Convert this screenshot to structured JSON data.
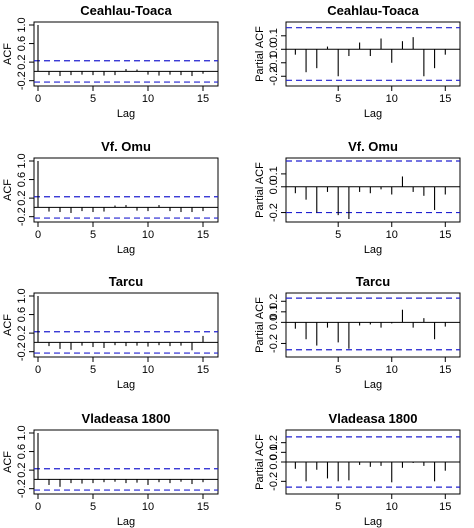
{
  "chart_data": [
    {
      "type": "acf",
      "title": "Ceahlau-Toaca",
      "xlabel": "Lag",
      "ylabel": "ACF",
      "xlim": [
        0,
        16
      ],
      "ylim": [
        -0.25,
        1.0
      ],
      "xticks": [
        "0",
        "5",
        "10",
        "15"
      ],
      "yticks": [
        "-0.2",
        "0.2",
        "0.6",
        "1.0"
      ],
      "ci": [
        -0.23,
        0.23
      ],
      "lags": [
        0,
        1,
        2,
        3,
        4,
        5,
        6,
        7,
        8,
        9,
        10,
        11,
        12,
        13,
        14,
        15
      ],
      "values": [
        1.0,
        -0.08,
        -0.1,
        -0.08,
        -0.07,
        -0.08,
        -0.09,
        -0.08,
        0.05,
        0.04,
        -0.07,
        -0.09,
        -0.07,
        -0.08,
        -0.1,
        -0.05
      ]
    },
    {
      "type": "pacf",
      "title": "Ceahlau-Toaca",
      "xlabel": "Lag",
      "ylabel": "Partial ACF",
      "xlim": [
        0.5,
        16
      ],
      "ylim": [
        -0.25,
        0.18
      ],
      "xticks": [
        "5",
        "10",
        "15"
      ],
      "yticks": [
        "-0.2",
        "-0.1",
        "0.0",
        "0.1"
      ],
      "ci": [
        -0.23,
        0.16
      ],
      "lags": [
        1,
        2,
        3,
        4,
        5,
        6,
        7,
        8,
        9,
        10,
        11,
        12,
        13,
        14,
        15
      ],
      "values": [
        -0.04,
        -0.17,
        -0.14,
        0.02,
        -0.2,
        -0.05,
        0.05,
        -0.05,
        0.08,
        -0.1,
        0.06,
        0.09,
        -0.2,
        -0.14,
        -0.04
      ]
    },
    {
      "type": "acf",
      "title": "Vf. Omu",
      "xlabel": "Lag",
      "ylabel": "ACF",
      "xlim": [
        0,
        16
      ],
      "ylim": [
        -0.25,
        1.0
      ],
      "xticks": [
        "0",
        "5",
        "10",
        "15"
      ],
      "yticks": [
        "-0.2",
        "0.2",
        "0.6",
        "1.0"
      ],
      "ci": [
        -0.23,
        0.23
      ],
      "lags": [
        0,
        1,
        2,
        3,
        4,
        5,
        6,
        7,
        8,
        9,
        10,
        11,
        12,
        13,
        14,
        15
      ],
      "values": [
        1.0,
        -0.09,
        -0.1,
        -0.12,
        -0.08,
        -0.1,
        -0.09,
        0.04,
        0.05,
        -0.07,
        -0.08,
        0.05,
        -0.08,
        -0.1,
        -0.1,
        -0.08
      ]
    },
    {
      "type": "pacf",
      "title": "Vf. Omu",
      "xlabel": "Lag",
      "ylabel": "Partial ACF",
      "xlim": [
        0.5,
        16
      ],
      "ylim": [
        -0.25,
        0.2
      ],
      "xticks": [
        "5",
        "10",
        "15"
      ],
      "yticks": [
        "-0.2",
        "0.0",
        "0.1"
      ],
      "ci": [
        -0.2,
        0.2
      ],
      "lags": [
        1,
        2,
        3,
        4,
        5,
        6,
        7,
        8,
        9,
        10,
        11,
        12,
        13,
        14,
        15
      ],
      "values": [
        -0.05,
        -0.1,
        -0.2,
        -0.04,
        -0.22,
        -0.25,
        -0.04,
        -0.05,
        -0.02,
        -0.06,
        0.08,
        -0.04,
        -0.07,
        -0.18,
        -0.06
      ]
    },
    {
      "type": "acf",
      "title": "Tarcu",
      "xlabel": "Lag",
      "ylabel": "ACF",
      "xlim": [
        0,
        16
      ],
      "ylim": [
        -0.25,
        1.0
      ],
      "xticks": [
        "0",
        "5",
        "10",
        "15"
      ],
      "yticks": [
        "-0.2",
        "0.2",
        "0.6",
        "1.0"
      ],
      "ci": [
        -0.23,
        0.23
      ],
      "lags": [
        0,
        1,
        2,
        3,
        4,
        5,
        6,
        7,
        8,
        9,
        10,
        11,
        12,
        13,
        14,
        15
      ],
      "values": [
        1.0,
        -0.08,
        -0.14,
        -0.16,
        -0.07,
        -0.1,
        -0.12,
        -0.06,
        -0.08,
        -0.07,
        -0.09,
        -0.06,
        -0.08,
        -0.07,
        -0.17,
        0.14
      ]
    },
    {
      "type": "pacf",
      "title": "Tarcu",
      "xlabel": "Lag",
      "ylabel": "Partial ACF",
      "xlim": [
        0.5,
        16
      ],
      "ylim": [
        -0.3,
        0.25
      ],
      "xticks": [
        "5",
        "10",
        "15"
      ],
      "yticks": [
        "-0.2",
        "0.0",
        "0.1",
        "0.2"
      ],
      "ci": [
        -0.26,
        0.23
      ],
      "lags": [
        1,
        2,
        3,
        4,
        5,
        6,
        7,
        8,
        9,
        10,
        11,
        12,
        13,
        14,
        15
      ],
      "values": [
        -0.06,
        -0.16,
        -0.22,
        -0.05,
        -0.19,
        -0.25,
        -0.03,
        -0.02,
        -0.05,
        -0.01,
        0.12,
        -0.05,
        0.04,
        -0.16,
        -0.04
      ]
    },
    {
      "type": "acf",
      "title": "Vladeasa 1800",
      "xlabel": "Lag",
      "ylabel": "ACF",
      "xlim": [
        0,
        16
      ],
      "ylim": [
        -0.25,
        1.0
      ],
      "xticks": [
        "0",
        "5",
        "10",
        "15"
      ],
      "yticks": [
        "-0.2",
        "0.2",
        "0.6",
        "1.0"
      ],
      "ci": [
        -0.23,
        0.23
      ],
      "lags": [
        0,
        1,
        2,
        3,
        4,
        5,
        6,
        7,
        8,
        9,
        10,
        11,
        12,
        13,
        14,
        15
      ],
      "values": [
        1.0,
        -0.12,
        -0.16,
        -0.08,
        -0.09,
        -0.08,
        -0.06,
        -0.05,
        -0.08,
        -0.07,
        -0.12,
        -0.06,
        -0.08,
        -0.05,
        -0.1,
        -0.06
      ]
    },
    {
      "type": "pacf",
      "title": "Vladeasa 1800",
      "xlabel": "Lag",
      "ylabel": "Partial ACF",
      "xlim": [
        0.5,
        16
      ],
      "ylim": [
        -0.3,
        0.3
      ],
      "xticks": [
        "5",
        "10",
        "15"
      ],
      "yticks": [
        "-0.2",
        "0.0",
        "0.1",
        "0.2"
      ],
      "ci": [
        -0.26,
        0.26
      ],
      "lags": [
        1,
        2,
        3,
        4,
        5,
        6,
        7,
        8,
        9,
        10,
        11,
        12,
        13,
        14,
        15
      ],
      "values": [
        -0.07,
        -0.2,
        -0.08,
        -0.17,
        -0.2,
        -0.19,
        -0.03,
        -0.05,
        -0.04,
        -0.21,
        -0.06,
        -0.01,
        -0.04,
        -0.2,
        -0.09
      ]
    }
  ]
}
